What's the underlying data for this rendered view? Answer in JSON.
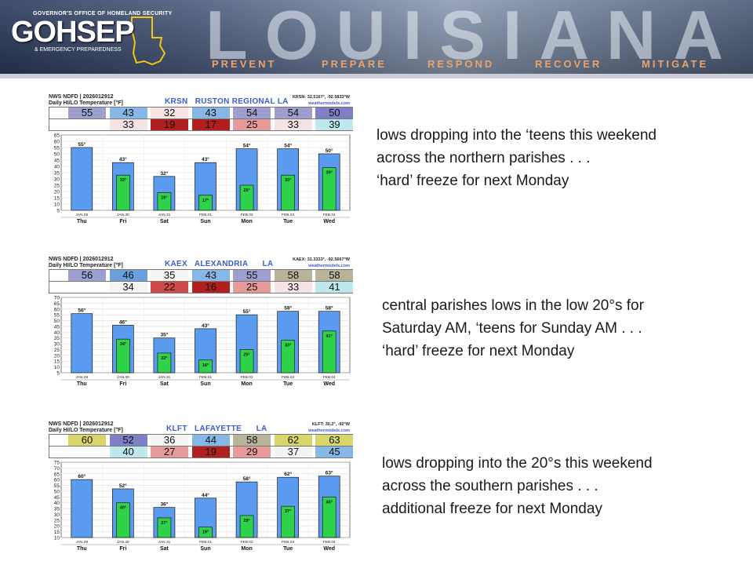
{
  "header": {
    "org_top": "GOVERNOR'S OFFICE OF HOMELAND SECURITY",
    "logo": "GOHSEP",
    "org_sub": "& EMERGENCY PREPAREDNESS",
    "state_word": "LOUISIANA",
    "missions": [
      "PREVENT",
      "PREPARE",
      "RESPOND",
      "RECOVER",
      "MITIGATE"
    ]
  },
  "colors": {
    "hi_bar": "#5b9bf0",
    "lo_bar": "#2fd34a",
    "station_text": "#3a5bd0"
  },
  "charts": [
    {
      "meta_line1": "NWS NDFD | 2026012912",
      "meta_line2": "Daily HI/LO Temperature [°F]",
      "station": "KRSN   RUSTON REGIONAL LA",
      "coords": "KRSN: 32.5167°, -92.5833°W",
      "site": "weathermodels.com",
      "highs_row": [
        "55",
        "43",
        "32",
        "43",
        "54",
        "54",
        "50"
      ],
      "lows_row": [
        "",
        "33",
        "19",
        "17",
        "25",
        "33",
        "39"
      ],
      "high_labels": [
        "55°",
        "43°",
        "32°",
        "43°",
        "54°",
        "54°",
        "50°"
      ],
      "low_labels": [
        "",
        "33°",
        "19°",
        "17°",
        "25°",
        "33°",
        "39°"
      ],
      "dates": [
        "JAN.29",
        "JAN.30",
        "JAN.31",
        "FEB.01",
        "FEB.02",
        "FEB.03",
        "FEB.04"
      ],
      "days": [
        "Thu",
        "Fri",
        "Sat",
        "Sun",
        "Mon",
        "Tue",
        "Wed"
      ],
      "y_ticks": [
        "65",
        "60",
        "55",
        "50",
        "45",
        "40",
        "35",
        "30",
        "25",
        "20",
        "15",
        "10",
        "5"
      ]
    },
    {
      "meta_line1": "NWS NDFD | 2026012912",
      "meta_line2": "Daily HI/LO Temperature [°F]",
      "station": "KAEX   ALEXANDRIA      LA",
      "coords": "KAEX: 31.3333°, -92.5667°W",
      "site": "weathermodels.com",
      "highs_row": [
        "56",
        "46",
        "35",
        "43",
        "55",
        "58",
        "58"
      ],
      "lows_row": [
        "",
        "34",
        "22",
        "16",
        "25",
        "33",
        "41"
      ],
      "high_labels": [
        "56°",
        "46°",
        "35°",
        "43°",
        "55°",
        "58°",
        "58°"
      ],
      "low_labels": [
        "",
        "34°",
        "22°",
        "16°",
        "25°",
        "33°",
        "41°"
      ],
      "dates": [
        "JAN.29",
        "JAN.30",
        "JAN.31",
        "FEB.01",
        "FEB.02",
        "FEB.03",
        "FEB.04"
      ],
      "days": [
        "Thu",
        "Fri",
        "Sat",
        "Sun",
        "Mon",
        "Tue",
        "Wed"
      ],
      "y_ticks": [
        "70",
        "65",
        "60",
        "55",
        "50",
        "45",
        "40",
        "35",
        "30",
        "25",
        "20",
        "15",
        "10",
        "5"
      ]
    },
    {
      "meta_line1": "NWS NDFD | 2026012912",
      "meta_line2": "Daily HI/LO Temperature [°F]",
      "station": "KLFT   LAFAYETTE      LA",
      "coords": "KLFT: 30.2°, -92°W",
      "site": "weathermodels.com",
      "highs_row": [
        "60",
        "52",
        "36",
        "44",
        "58",
        "62",
        "63"
      ],
      "lows_row": [
        "",
        "40",
        "27",
        "19",
        "29",
        "37",
        "45"
      ],
      "high_labels": [
        "60°",
        "52°",
        "36°",
        "44°",
        "58°",
        "62°",
        "63°"
      ],
      "low_labels": [
        "",
        "40°",
        "27°",
        "19°",
        "29°",
        "37°",
        "45°"
      ],
      "dates": [
        "JAN.29",
        "JAN.30",
        "JAN.31",
        "FEB.01",
        "FEB.02",
        "FEB.03",
        "FEB.04"
      ],
      "days": [
        "Thu",
        "Fri",
        "Sat",
        "Sun",
        "Mon",
        "Tue",
        "Wed"
      ],
      "y_ticks": [
        "75",
        "70",
        "65",
        "60",
        "55",
        "50",
        "45",
        "40",
        "35",
        "30",
        "25",
        "20",
        "15",
        "10"
      ]
    }
  ],
  "chart_data": [
    {
      "type": "bar",
      "title": "KRSN   RUSTON REGIONAL LA",
      "categories": [
        "JAN.29",
        "JAN.30",
        "JAN.31",
        "FEB.01",
        "FEB.02",
        "FEB.03",
        "FEB.04"
      ],
      "series": [
        {
          "values": [
            55,
            43,
            32,
            43,
            54,
            54,
            50
          ]
        },
        {
          "values": [
            null,
            33,
            19,
            17,
            25,
            33,
            39
          ]
        }
      ],
      "ylim": [
        5,
        65
      ],
      "grid": true
    },
    {
      "type": "bar",
      "title": "KAEX   ALEXANDRIA      LA",
      "categories": [
        "JAN.29",
        "JAN.30",
        "JAN.31",
        "FEB.01",
        "FEB.02",
        "FEB.03",
        "FEB.04"
      ],
      "series": [
        {
          "values": [
            56,
            46,
            35,
            43,
            55,
            58,
            58
          ]
        },
        {
          "values": [
            null,
            34,
            22,
            16,
            25,
            33,
            41
          ]
        }
      ],
      "ylim": [
        5,
        70
      ],
      "grid": true
    },
    {
      "type": "bar",
      "title": "KLFT   LAFAYETTE      LA",
      "categories": [
        "JAN.29",
        "JAN.30",
        "JAN.31",
        "FEB.01",
        "FEB.02",
        "FEB.03",
        "FEB.04"
      ],
      "series": [
        {
          "values": [
            60,
            52,
            36,
            44,
            58,
            62,
            63
          ]
        },
        {
          "values": [
            null,
            40,
            27,
            19,
            29,
            37,
            45
          ]
        }
      ],
      "ylim": [
        10,
        75
      ],
      "grid": true
    }
  ],
  "notes": [
    {
      "lines": [
        "lows dropping into the ‘teens this weekend",
        "across the northern parishes . . .",
        "‘hard’ freeze for next Monday"
      ]
    },
    {
      "lines": [
        "central parishes lows in the low 20°s for",
        "Saturday AM, ‘teens for Sunday AM . . .",
        "‘hard’ freeze for next Monday"
      ]
    },
    {
      "lines": [
        "lows dropping into the 20°s this weekend",
        "across the southern parishes . . .",
        "additional freeze for next Monday"
      ]
    }
  ]
}
